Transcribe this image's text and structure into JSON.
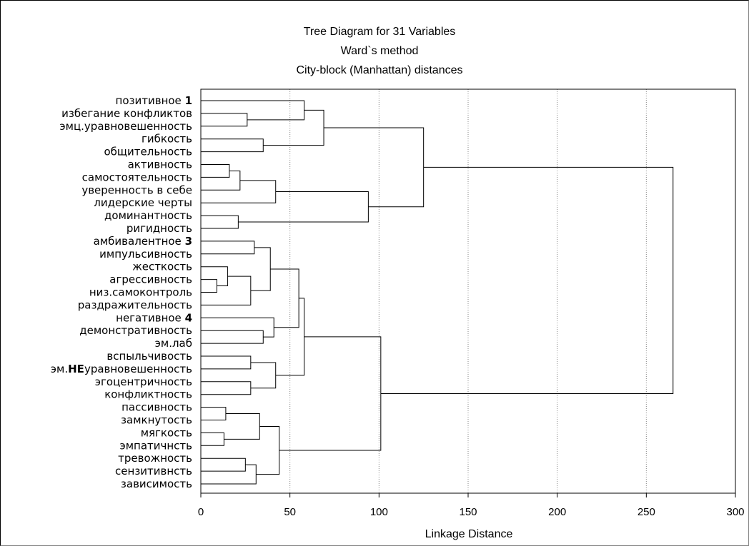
{
  "chart_data": {
    "type": "dendrogram",
    "title": "Tree Diagram for 31  Variables",
    "subtitle_1": "Ward`s method",
    "subtitle_2": "City-block (Manhattan) distances",
    "xlabel": "Linkage Distance",
    "xlim": [
      0,
      300
    ],
    "xticks": [
      "0",
      "50",
      "100",
      "150",
      "200",
      "250",
      "300"
    ],
    "grid": "vertical dotted",
    "leaves": [
      {
        "text": "позитивное ",
        "bold": "1"
      },
      {
        "text": "избегание конфликтов"
      },
      {
        "text": "эмц.уравновешенность"
      },
      {
        "text": "гибкость"
      },
      {
        "text": "общительность"
      },
      {
        "text": "активность"
      },
      {
        "text": "самостоятельность"
      },
      {
        "text": "уверенность в себе"
      },
      {
        "text": "лидерские черты"
      },
      {
        "text": "доминантность"
      },
      {
        "text": "ригидность"
      },
      {
        "text": "амбивалентное ",
        "bold": "3"
      },
      {
        "text": "импульсивность"
      },
      {
        "text": "жесткость"
      },
      {
        "text": "агрессивность"
      },
      {
        "text": "низ.самоконтроль"
      },
      {
        "text": "раздражительность"
      },
      {
        "text": "негативное ",
        "bold": "4"
      },
      {
        "text": "демонстративность"
      },
      {
        "text": "эм.лаб"
      },
      {
        "text": "вспыльчивость"
      },
      {
        "text": "эм.",
        "bold": "НЕ",
        "after": "уравновешенность"
      },
      {
        "text": "эгоцентричность"
      },
      {
        "text": "конфликтность"
      },
      {
        "text": "пассивность"
      },
      {
        "text": "замкнутость"
      },
      {
        "text": "мягкость"
      },
      {
        "text": "эмпатичнсть"
      },
      {
        "text": "тревожность"
      },
      {
        "text": "сензитивнсть"
      },
      {
        "text": "зависимость"
      }
    ],
    "merges": [
      [
        1,
        2,
        26
      ],
      [
        0,
        "m0",
        58
      ],
      [
        3,
        4,
        35
      ],
      [
        "m1",
        "m2",
        69
      ],
      [
        5,
        6,
        16
      ],
      [
        "m4",
        7,
        22
      ],
      [
        "m5",
        8,
        42
      ],
      [
        9,
        10,
        21
      ],
      [
        "m6",
        "m7",
        94
      ],
      [
        "m3",
        "m8",
        125
      ],
      [
        11,
        12,
        30
      ],
      [
        14,
        15,
        9
      ],
      [
        13,
        "m11",
        15
      ],
      [
        "m12",
        16,
        28
      ],
      [
        "m10",
        "m13",
        39
      ],
      [
        18,
        19,
        35
      ],
      [
        17,
        "m15",
        41
      ],
      [
        "m14",
        "m16",
        55
      ],
      [
        20,
        21,
        28
      ],
      [
        22,
        23,
        28
      ],
      [
        "m18",
        "m19",
        42
      ],
      [
        "m17",
        "m20",
        58
      ],
      [
        24,
        25,
        14
      ],
      [
        26,
        27,
        13
      ],
      [
        "m22",
        "m23",
        33
      ],
      [
        28,
        29,
        25
      ],
      [
        "m25",
        30,
        31
      ],
      [
        "m24",
        "m26",
        44
      ],
      [
        "m21",
        "m27",
        101
      ],
      [
        "m9",
        "m28",
        265
      ]
    ]
  }
}
